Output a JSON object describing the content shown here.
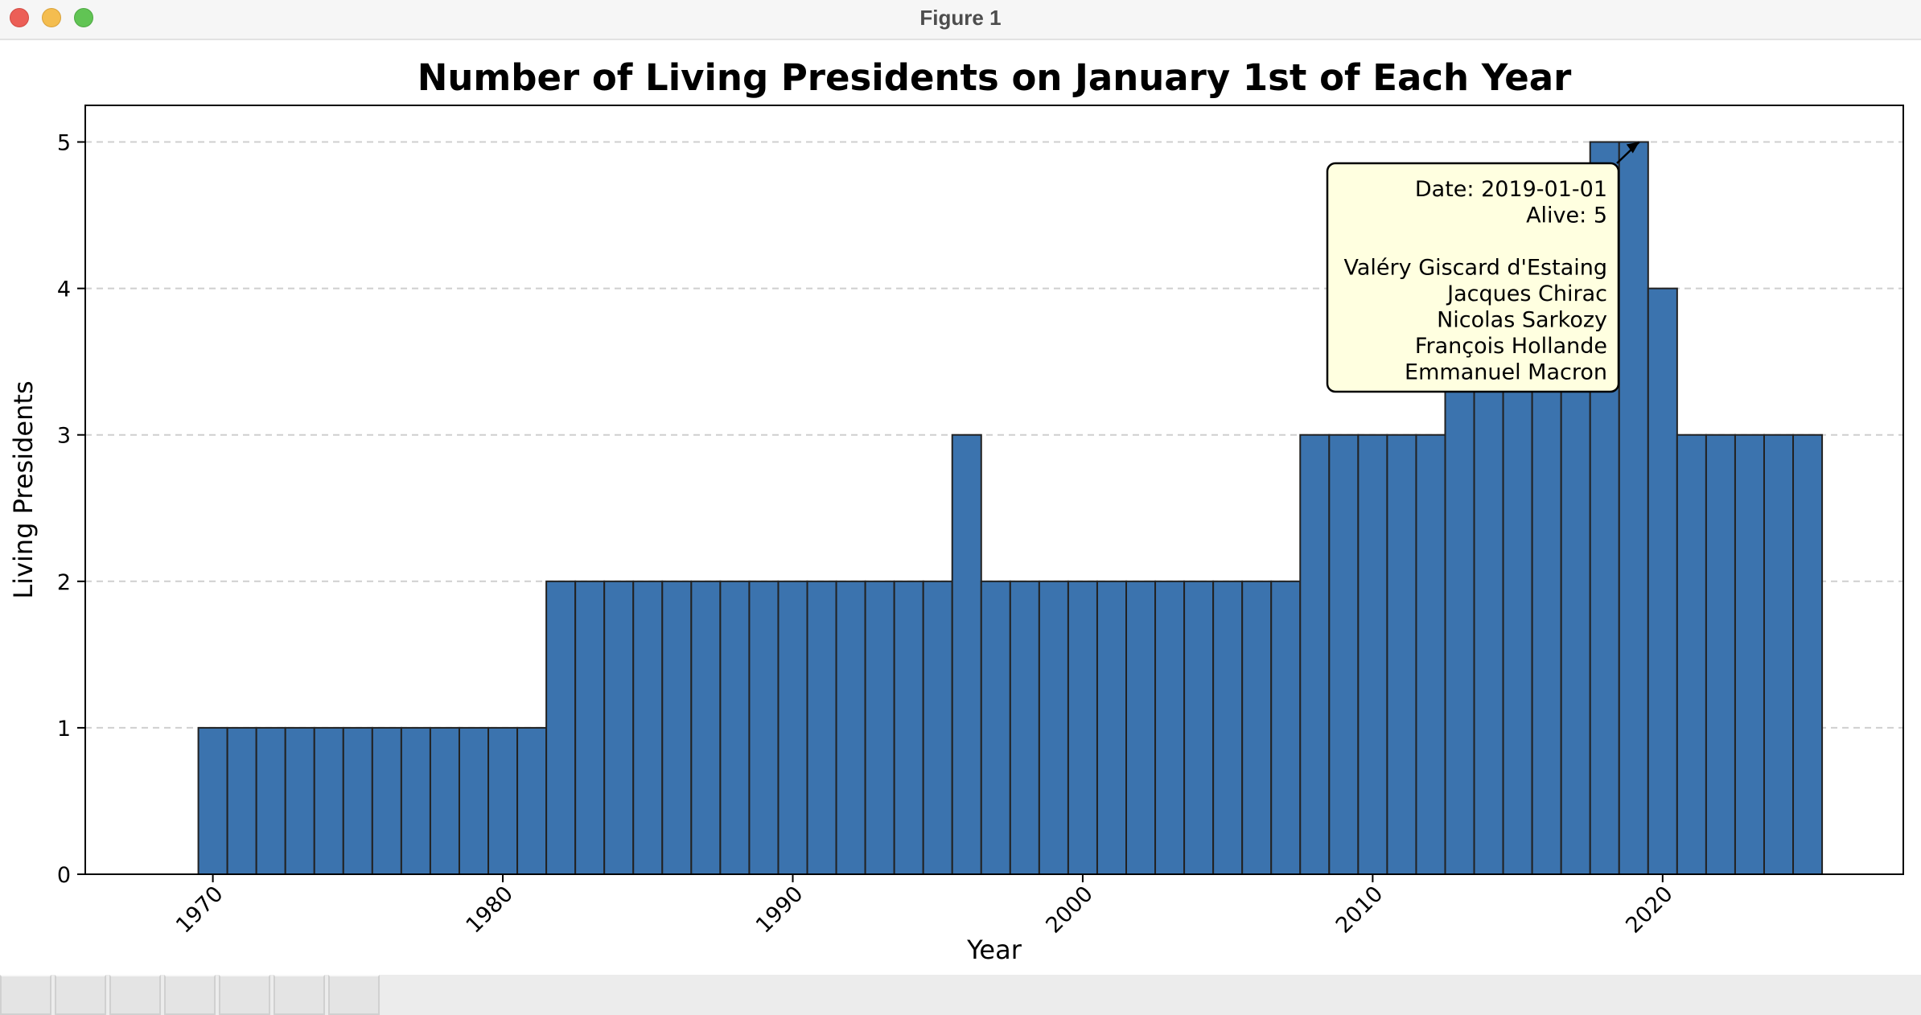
{
  "window": {
    "title": "Figure 1"
  },
  "chart_data": {
    "type": "bar",
    "title": "Number of Living Presidents on January 1st of Each Year",
    "xlabel": "Year",
    "ylabel": "Living Presidents",
    "x_ticks": [
      1970,
      1980,
      1990,
      2000,
      2010,
      2020
    ],
    "y_ticks": [
      0,
      1,
      2,
      3,
      4,
      5
    ],
    "xlim": [
      1965.6,
      2028.3
    ],
    "ylim": [
      0,
      5.25
    ],
    "grid": "y-dashed",
    "bar_color": "#3b73ae",
    "bar_edge_color": "#222222",
    "x": [
      1970,
      1971,
      1972,
      1973,
      1974,
      1975,
      1976,
      1977,
      1978,
      1979,
      1980,
      1981,
      1982,
      1983,
      1984,
      1985,
      1986,
      1987,
      1988,
      1989,
      1990,
      1991,
      1992,
      1993,
      1994,
      1995,
      1996,
      1997,
      1998,
      1999,
      2000,
      2001,
      2002,
      2003,
      2004,
      2005,
      2006,
      2007,
      2008,
      2009,
      2010,
      2011,
      2012,
      2013,
      2014,
      2015,
      2016,
      2017,
      2018,
      2019,
      2020,
      2021,
      2022,
      2023,
      2024,
      2025
    ],
    "values": [
      1,
      1,
      1,
      1,
      1,
      1,
      1,
      1,
      1,
      1,
      1,
      1,
      2,
      2,
      2,
      2,
      2,
      2,
      2,
      2,
      2,
      2,
      2,
      2,
      2,
      2,
      3,
      2,
      2,
      2,
      2,
      2,
      2,
      2,
      2,
      2,
      2,
      2,
      3,
      3,
      3,
      3,
      3,
      4,
      4,
      4,
      4,
      4,
      5,
      5,
      4,
      3,
      3,
      3,
      3,
      3
    ],
    "annotation": {
      "target_x": 2019,
      "target_y": 5,
      "lines": [
        "Date: 2019-01-01",
        "Alive: 5",
        "",
        "Valéry Giscard d'Estaing",
        "Jacques Chirac",
        "Nicolas Sarkozy",
        "François Hollande",
        "Emmanuel Macron"
      ],
      "background": "#ffffe0"
    }
  }
}
